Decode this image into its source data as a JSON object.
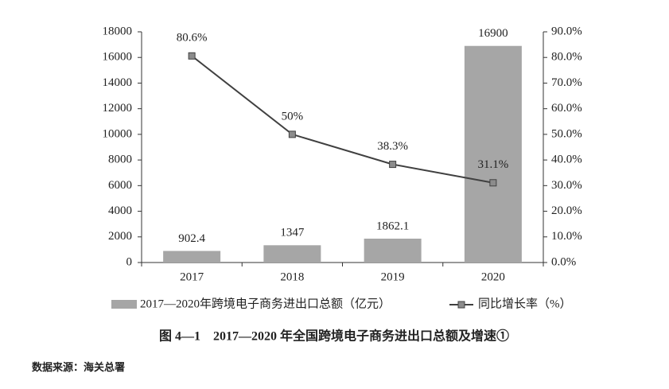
{
  "chart_data": {
    "type": "bar",
    "title": "图 4—1　2017—2020 年全国跨境电子商务进出口总额及增速①",
    "source": "数据来源：海关总署",
    "categories": [
      "2017",
      "2018",
      "2019",
      "2020"
    ],
    "series": [
      {
        "name": "2017—2020年跨境电子商务进出口总额（亿元）",
        "color": "#a6a6a6",
        "values": [
          902.4,
          1347,
          1862.1,
          16900
        ]
      },
      {
        "name": "同比增长率（%）",
        "type": "line",
        "axis": "y2",
        "color": "#404040",
        "marker_color": "#8c8c8c",
        "values": [
          80.6,
          50,
          38.3,
          31.1
        ],
        "value_labels": [
          "80.6%",
          "50%",
          "38.3%",
          "31.1%"
        ]
      }
    ],
    "ylim": [
      0,
      18000
    ],
    "yticks": [
      0,
      2000,
      4000,
      6000,
      8000,
      10000,
      12000,
      14000,
      16000,
      18000
    ],
    "y2lim": [
      0,
      90
    ],
    "y2ticks": [
      {
        "value": 0,
        "label": "0.0%"
      },
      {
        "value": 10,
        "label": "10.0%"
      },
      {
        "value": 20,
        "label": "20.0%"
      },
      {
        "value": 30,
        "label": "30.0%"
      },
      {
        "value": 40,
        "label": "40.0%"
      },
      {
        "value": 50,
        "label": "50.0%"
      },
      {
        "value": 60,
        "label": "60.0%"
      },
      {
        "value": 70,
        "label": "70.0%"
      },
      {
        "value": 80,
        "label": "80.0%"
      },
      {
        "value": 90,
        "label": "90.0%"
      }
    ],
    "grid": false
  }
}
